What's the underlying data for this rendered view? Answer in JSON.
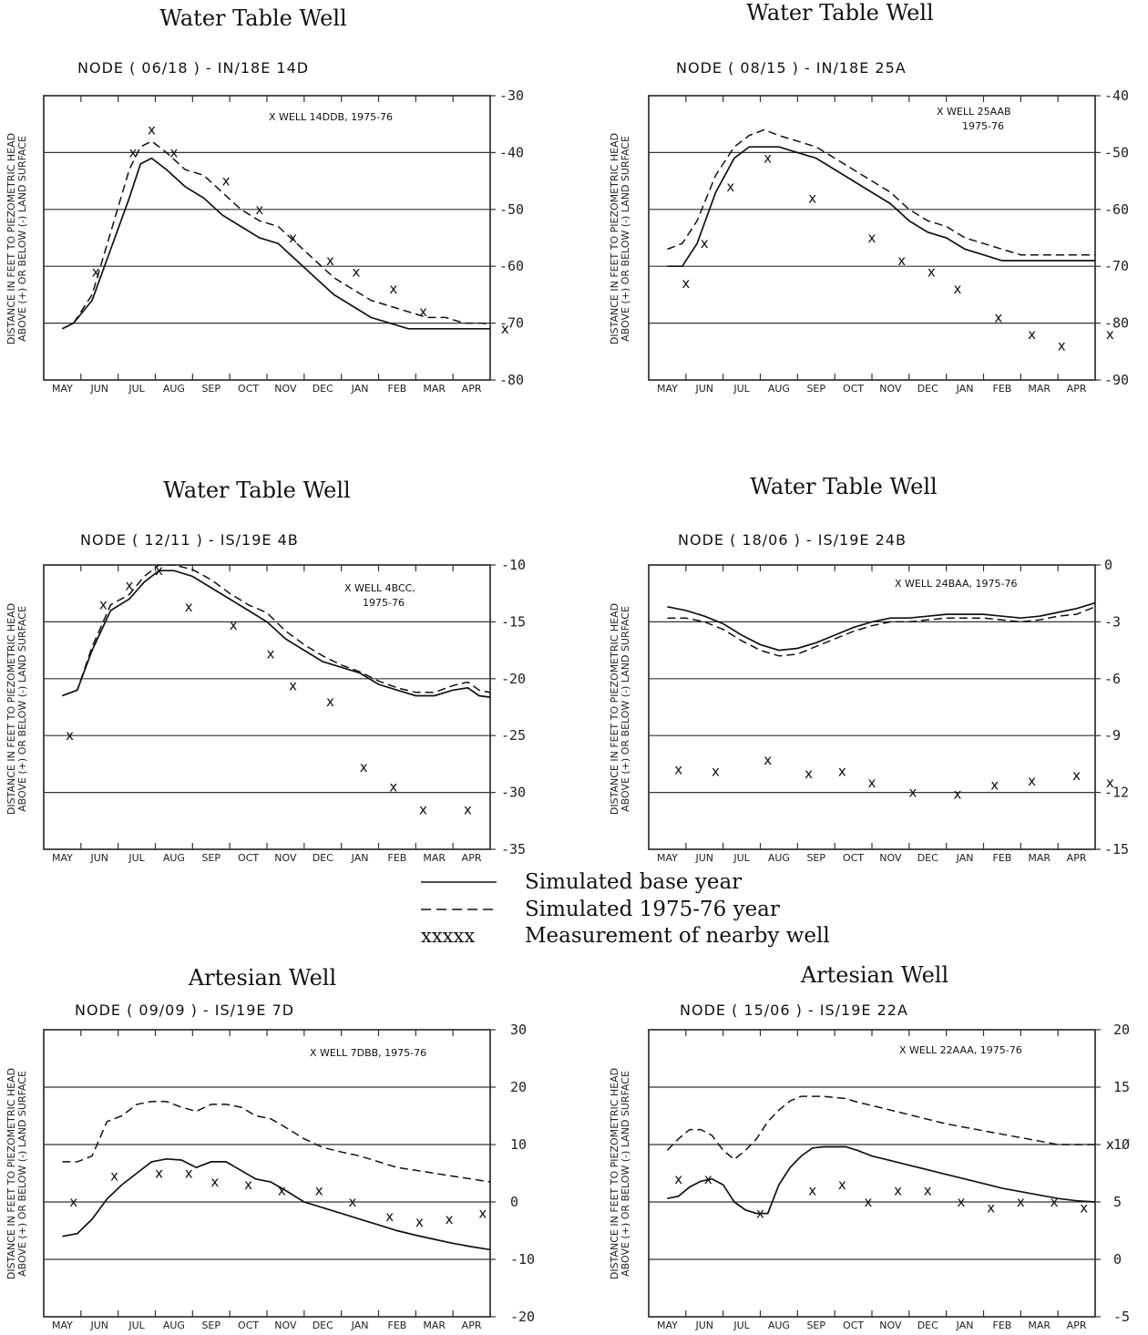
{
  "months": [
    "MAY",
    "JUN",
    "JUL",
    "AUG",
    "SEP",
    "OCT",
    "NOV",
    "DEC",
    "JAN",
    "FEB",
    "MAR",
    "APR"
  ],
  "ylabel": [
    "DISTANCE IN FEET TO PIEZOMETRIC HEAD",
    "ABOVE (+) OR BELOW (-) LAND SURFACE"
  ],
  "legend": {
    "items": [
      {
        "sample": "———",
        "label": "Simulated base year"
      },
      {
        "sample": "-----",
        "label": "Simulated 1975-76 year"
      },
      {
        "sample": "xxxxx",
        "label": "Measurement of nearby well"
      }
    ]
  },
  "chart_data": [
    {
      "type": "line",
      "title": "Water Table Well",
      "subtitle": "NODE ( 06/18 ) - IN/18E 14D",
      "well_label": "X WELL 14DDB, 1975-76",
      "ylim": [
        -80,
        -30
      ],
      "yticks": [
        -30,
        -40,
        -50,
        -60,
        -70,
        -80
      ],
      "ytick_labels": [
        "-30",
        "-40",
        "-50",
        "-60",
        "-70",
        "-80"
      ],
      "grid": "horizontal",
      "series": [
        {
          "style": "solid",
          "x": [
            0,
            0.3,
            0.8,
            1.3,
            1.8,
            2.1,
            2.4,
            2.8,
            3.3,
            3.8,
            4.3,
            4.8,
            5.3,
            5.8,
            6.3,
            6.8,
            7.3,
            7.8,
            8.3,
            8.8,
            9.3,
            9.8,
            10.3,
            10.8,
            11.3,
            11.9
          ],
          "y": [
            -71,
            -70,
            -66,
            -57,
            -48,
            -42,
            -41,
            -43,
            -46,
            -48,
            -51,
            -53,
            -55,
            -56,
            -59,
            -62,
            -65,
            -67,
            -69,
            -70,
            -71,
            -71,
            -71,
            -71,
            -71,
            -71
          ]
        },
        {
          "style": "dashed",
          "x": [
            0,
            0.3,
            0.8,
            1.3,
            1.8,
            2.1,
            2.4,
            2.8,
            3.3,
            3.8,
            4.3,
            4.8,
            5.3,
            5.8,
            6.3,
            6.8,
            7.3,
            7.8,
            8.3,
            8.8,
            9.3,
            9.8,
            10.3,
            10.8,
            11.3,
            11.9
          ],
          "y": [
            -71,
            -70,
            -65,
            -54,
            -43,
            -39,
            -38,
            -40,
            -43,
            -44,
            -47,
            -50,
            -52,
            -53,
            -56,
            -59,
            -62,
            -64,
            -66,
            -67,
            -68,
            -69,
            -69,
            -70,
            -70,
            -71
          ]
        },
        {
          "style": "markers",
          "x": [
            0.9,
            1.9,
            2.4,
            3.0,
            4.4,
            5.3,
            6.2,
            7.2,
            7.9,
            8.9,
            9.7,
            11.9
          ],
          "y": [
            -61,
            -40,
            -36,
            -40,
            -45,
            -50,
            -55,
            -59,
            -61,
            -64,
            -68,
            -71
          ]
        }
      ]
    },
    {
      "type": "line",
      "title": "Water Table Well",
      "subtitle": "NODE ( 08/15 ) - IN/18E 25A",
      "well_label": "X WELL 25AAB",
      "well_label_2": "1975-76",
      "ylim": [
        -90,
        -40
      ],
      "yticks": [
        -40,
        -50,
        -60,
        -70,
        -80,
        -90
      ],
      "ytick_labels": [
        "-40",
        "-50",
        "-60",
        "-70",
        "-80",
        "-90"
      ],
      "grid": "horizontal",
      "series": [
        {
          "style": "solid",
          "x": [
            0,
            0.4,
            0.8,
            1.3,
            1.8,
            2.2,
            2.6,
            3.0,
            3.5,
            4.0,
            4.5,
            5.0,
            5.5,
            6.0,
            6.5,
            7.0,
            7.5,
            8.0,
            8.5,
            9.0,
            9.5,
            10.0,
            10.5,
            11.0,
            11.5,
            11.9
          ],
          "y": [
            -70,
            -70,
            -66,
            -57,
            -51,
            -49,
            -49,
            -49,
            -50,
            -51,
            -53,
            -55,
            -57,
            -59,
            -62,
            -64,
            -65,
            -67,
            -68,
            -69,
            -69,
            -69,
            -69,
            -69,
            -69,
            -69
          ]
        },
        {
          "style": "dashed",
          "x": [
            0,
            0.4,
            0.8,
            1.3,
            1.8,
            2.2,
            2.6,
            3.0,
            3.5,
            4.0,
            4.5,
            5.0,
            5.5,
            6.0,
            6.5,
            7.0,
            7.5,
            8.0,
            8.5,
            9.0,
            9.5,
            10.0,
            10.5,
            11.0,
            11.5,
            11.9
          ],
          "y": [
            -67,
            -66,
            -62,
            -54,
            -49,
            -47,
            -46,
            -47,
            -48,
            -49,
            -51,
            -53,
            -55,
            -57,
            -60,
            -62,
            -63,
            -65,
            -66,
            -67,
            -68,
            -68,
            -68,
            -68,
            -68,
            -68
          ]
        },
        {
          "style": "markers",
          "x": [
            0.5,
            1.0,
            1.7,
            2.7,
            3.9,
            5.5,
            6.3,
            7.1,
            7.8,
            8.9,
            9.8,
            10.6,
            11.9
          ],
          "y": [
            -73,
            -66,
            -56,
            -51,
            -58,
            -65,
            -69,
            -71,
            -74,
            -79,
            -82,
            -84,
            -82
          ]
        }
      ]
    },
    {
      "type": "line",
      "title": "Water Table Well",
      "subtitle": "NODE ( 12/11 ) - IS/19E 4B",
      "well_label": "X WELL 4BCC,",
      "well_label_2": "1975-76",
      "ylim": [
        -35,
        -10
      ],
      "yticks": [
        -10,
        -15,
        -20,
        -25,
        -30,
        -35
      ],
      "ytick_labels": [
        "-10",
        "-15",
        "-20",
        "-25",
        "-30",
        "-35"
      ],
      "grid": "horizontal",
      "series": [
        {
          "style": "solid",
          "x": [
            0,
            0.4,
            0.8,
            1.3,
            1.8,
            2.2,
            2.6,
            3.0,
            3.5,
            4.0,
            4.5,
            5.0,
            5.5,
            6.0,
            6.5,
            7.0,
            7.5,
            8.0,
            8.5,
            9.0,
            9.5,
            10.0,
            10.5,
            10.9,
            11.2,
            11.9
          ],
          "y": [
            -21.5,
            -21,
            -17.5,
            -14,
            -13,
            -11.5,
            -10.5,
            -10.5,
            -11,
            -12,
            -13,
            -14,
            -15,
            -16.5,
            -17.5,
            -18.5,
            -19,
            -19.5,
            -20.5,
            -21,
            -21.5,
            -21.5,
            -21,
            -20.8,
            -21.5,
            -21.8
          ]
        },
        {
          "style": "dashed",
          "x": [
            0,
            0.4,
            0.8,
            1.3,
            1.8,
            2.2,
            2.6,
            3.0,
            3.5,
            4.0,
            4.5,
            5.0,
            5.5,
            6.0,
            6.5,
            7.0,
            7.5,
            8.0,
            8.5,
            9.0,
            9.5,
            10.0,
            10.5,
            10.9,
            11.2,
            11.9
          ],
          "y": [
            -21.5,
            -21,
            -17.2,
            -13.5,
            -12.6,
            -11,
            -10,
            -10,
            -10.4,
            -11.3,
            -12.5,
            -13.5,
            -14.2,
            -15.8,
            -17,
            -18,
            -18.8,
            -19.4,
            -20.2,
            -20.8,
            -21.2,
            -21.2,
            -20.6,
            -20.3,
            -21,
            -21.5
          ]
        },
        {
          "style": "markers",
          "x": [
            0.2,
            1.1,
            1.8,
            2.6,
            3.4,
            4.6,
            5.6,
            6.2,
            7.2,
            8.1,
            8.9,
            9.7,
            10.9
          ],
          "y": [
            -25,
            -13.5,
            -11.8,
            -10.5,
            -13.7,
            -15.3,
            -17.8,
            -20.6,
            -22,
            -27.8,
            -29.5,
            -31.5,
            -31.5
          ]
        }
      ]
    },
    {
      "type": "line",
      "title": "Water Table Well",
      "subtitle": "NODE ( 18/06 ) - IS/19E 24B",
      "well_label": "X WELL 24BAA, 1975-76",
      "ylim": [
        -15,
        0
      ],
      "yticks": [
        0,
        -3,
        -6,
        -9,
        -12,
        -15
      ],
      "ytick_labels": [
        "0",
        "-3",
        "-6",
        "-9",
        "-12",
        "-15"
      ],
      "grid": "horizontal",
      "series": [
        {
          "style": "solid",
          "x": [
            0,
            0.5,
            1.0,
            1.5,
            2.0,
            2.5,
            3.0,
            3.5,
            4.0,
            4.5,
            5.0,
            5.5,
            6.0,
            6.5,
            7.0,
            7.5,
            8.0,
            8.5,
            9.0,
            9.5,
            10.0,
            10.5,
            11.0,
            11.5,
            11.9
          ],
          "y": [
            -2.2,
            -2.4,
            -2.7,
            -3.1,
            -3.7,
            -4.2,
            -4.5,
            -4.4,
            -4.1,
            -3.7,
            -3.3,
            -3.0,
            -2.8,
            -2.8,
            -2.7,
            -2.6,
            -2.6,
            -2.6,
            -2.7,
            -2.8,
            -2.7,
            -2.5,
            -2.3,
            -2.0,
            -2.0
          ]
        },
        {
          "style": "dashed",
          "x": [
            0,
            0.5,
            1.0,
            1.5,
            2.0,
            2.5,
            3.0,
            3.5,
            4.0,
            4.5,
            5.0,
            5.5,
            6.0,
            6.5,
            7.0,
            7.5,
            8.0,
            8.5,
            9.0,
            9.5,
            10.0,
            10.5,
            11.0,
            11.5,
            11.9
          ],
          "y": [
            -2.8,
            -2.8,
            -3.0,
            -3.4,
            -4.0,
            -4.5,
            -4.8,
            -4.7,
            -4.3,
            -3.9,
            -3.5,
            -3.2,
            -3.0,
            -3.0,
            -2.9,
            -2.8,
            -2.8,
            -2.8,
            -2.9,
            -3.0,
            -2.9,
            -2.7,
            -2.6,
            -2.2,
            -2.3
          ]
        },
        {
          "style": "markers",
          "x": [
            0.3,
            1.3,
            2.7,
            3.8,
            4.7,
            5.5,
            6.6,
            7.8,
            8.8,
            9.8,
            11.0,
            11.9
          ],
          "y": [
            -10.8,
            -10.9,
            -10.3,
            -11.0,
            -10.9,
            -11.5,
            -12.0,
            -12.1,
            -11.6,
            -11.4,
            -11.1,
            -11.5
          ]
        }
      ]
    },
    {
      "type": "line",
      "title": "Artesian Well",
      "subtitle": "NODE ( 09/09 ) - IS/19E 7D",
      "well_label": "X WELL 7DBB, 1975-76",
      "ylim": [
        -20,
        30
      ],
      "yticks": [
        30,
        20,
        10,
        0,
        -10,
        -20
      ],
      "ytick_labels": [
        "30",
        "20",
        "10",
        "0",
        "-10",
        "-20"
      ],
      "grid": "horizontal",
      "series": [
        {
          "style": "solid",
          "x": [
            0,
            0.4,
            0.8,
            1.2,
            1.6,
            2.0,
            2.4,
            2.8,
            3.2,
            3.6,
            4.0,
            4.4,
            4.8,
            5.2,
            5.6,
            6.0,
            6.5,
            7.0,
            7.5,
            8.0,
            8.5,
            9.0,
            9.5,
            10.0,
            10.5,
            11.0,
            11.5,
            11.9
          ],
          "y": [
            -6,
            -5.5,
            -3,
            0.5,
            3,
            5,
            7,
            7.5,
            7.3,
            6,
            7,
            7,
            5.5,
            4,
            3.5,
            2,
            0,
            -1,
            -2,
            -3,
            -4,
            -5,
            -5.8,
            -6.5,
            -7.2,
            -7.8,
            -8.3,
            -8.6
          ]
        },
        {
          "style": "dashed",
          "x": [
            0,
            0.4,
            0.8,
            1.2,
            1.6,
            2.0,
            2.4,
            2.8,
            3.2,
            3.6,
            4.0,
            4.4,
            4.8,
            5.2,
            5.6,
            6.0,
            6.5,
            7.0,
            7.5,
            8.0,
            8.5,
            9.0,
            9.5,
            10.0,
            10.5,
            11.0,
            11.5,
            11.9
          ],
          "y": [
            7,
            7,
            8,
            14,
            15,
            17,
            17.5,
            17.5,
            16.5,
            15.8,
            17,
            17,
            16.5,
            15,
            14.5,
            13,
            11,
            9.5,
            8.7,
            8,
            7,
            6,
            5.5,
            5,
            4.5,
            4,
            3.5,
            3
          ]
        },
        {
          "style": "markers",
          "x": [
            0.3,
            1.4,
            2.6,
            3.4,
            4.1,
            5.0,
            5.9,
            6.9,
            7.8,
            8.8,
            9.6,
            10.4,
            11.3
          ],
          "y": [
            0,
            4.5,
            5,
            5,
            3.5,
            3,
            2,
            2,
            0,
            -2.5,
            -3.5,
            -3,
            -2
          ]
        }
      ]
    },
    {
      "type": "line",
      "title": "Artesian Well",
      "subtitle": "NODE ( 15/06 ) - IS/19E 22A",
      "well_label": "X WELL 22AAA, 1975-76",
      "ylim": [
        -5,
        20
      ],
      "yticks": [
        20,
        15,
        10,
        5,
        0,
        -5
      ],
      "ytick_labels": [
        "20",
        "15",
        "1Ø",
        "5",
        "0",
        "-5"
      ],
      "grid": "horizontal",
      "series": [
        {
          "style": "solid",
          "x": [
            0,
            0.3,
            0.6,
            0.9,
            1.2,
            1.5,
            1.8,
            2.1,
            2.4,
            2.7,
            3.0,
            3.3,
            3.6,
            3.9,
            4.2,
            4.5,
            4.8,
            5.1,
            5.5,
            6.0,
            6.5,
            7.0,
            7.5,
            8.0,
            8.5,
            9.0,
            9.5,
            10.0,
            10.5,
            11.0,
            11.5,
            11.9
          ],
          "y": [
            5.3,
            5.5,
            6.3,
            6.8,
            7,
            6.5,
            5,
            4.3,
            4,
            4,
            6.5,
            8,
            9,
            9.7,
            9.8,
            9.8,
            9.8,
            9.5,
            9,
            8.6,
            8.2,
            7.8,
            7.4,
            7,
            6.6,
            6.2,
            5.9,
            5.6,
            5.3,
            5.1,
            5,
            5
          ]
        },
        {
          "style": "dashed",
          "x": [
            0,
            0.3,
            0.6,
            0.9,
            1.2,
            1.5,
            1.8,
            2.1,
            2.4,
            2.7,
            3.0,
            3.3,
            3.6,
            3.9,
            4.2,
            4.5,
            4.8,
            5.1,
            5.5,
            6.0,
            6.5,
            7.0,
            7.5,
            8.0,
            8.5,
            9.0,
            9.5,
            10.0,
            10.5,
            11.0,
            11.5,
            11.9
          ],
          "y": [
            9.5,
            10.5,
            11.3,
            11.3,
            10.8,
            9.5,
            8.7,
            9.5,
            10.5,
            12,
            13,
            13.8,
            14.2,
            14.2,
            14.2,
            14.1,
            14,
            13.7,
            13.4,
            13,
            12.6,
            12.2,
            11.8,
            11.5,
            11.2,
            10.9,
            10.6,
            10.3,
            10,
            10,
            10,
            10
          ]
        },
        {
          "style": "markers",
          "x": [
            0.3,
            1.1,
            2.5,
            3.9,
            4.7,
            5.4,
            6.2,
            7.0,
            7.9,
            8.7,
            9.5,
            10.4,
            11.2,
            11.9
          ],
          "y": [
            7,
            7,
            4,
            6,
            6.5,
            5,
            6,
            6,
            5,
            4.5,
            5,
            5,
            4.5,
            10
          ]
        }
      ]
    }
  ]
}
